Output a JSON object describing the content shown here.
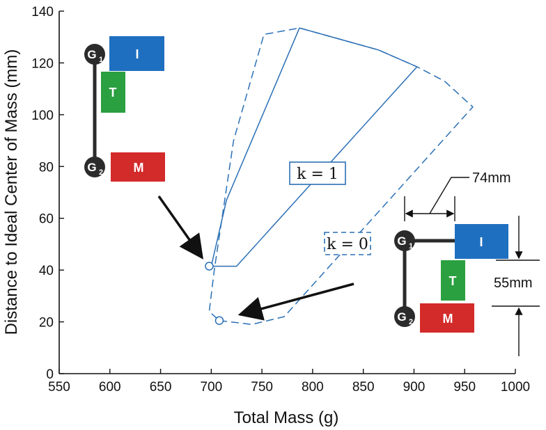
{
  "chart_data": {
    "type": "line",
    "xlabel": "Total Mass (g)",
    "ylabel": "Distance to Ideal Center of Mass (mm)",
    "xlim": [
      550,
      1000
    ],
    "ylim": [
      0,
      140
    ],
    "x_ticks": [
      "550",
      "600",
      "650",
      "700",
      "750",
      "800",
      "850",
      "900",
      "950",
      "1000"
    ],
    "y_ticks": [
      "0",
      "20",
      "40",
      "60",
      "80",
      "100",
      "120",
      "140"
    ],
    "grid": false,
    "series": [
      {
        "label": "k = 1",
        "style": "solid",
        "color": "#2a6fb5",
        "points": [
          [
            700,
            41.5
          ],
          [
            725,
            41.5
          ],
          [
            903,
            118.5
          ],
          [
            865,
            125
          ],
          [
            787,
            133.5
          ],
          [
            715,
            67
          ],
          [
            700,
            41.5
          ]
        ]
      },
      {
        "label": "k = 0",
        "style": "dashed",
        "color": "#2a6fb5",
        "points": [
          [
            708,
            20.5
          ],
          [
            740,
            19
          ],
          [
            772,
            22
          ],
          [
            958,
            103
          ],
          [
            930,
            113
          ],
          [
            903,
            118.5
          ],
          [
            865,
            125
          ],
          [
            787,
            133.5
          ],
          [
            752,
            131
          ],
          [
            722,
            90
          ],
          [
            703,
            40
          ],
          [
            698,
            24
          ],
          [
            708,
            20.5
          ]
        ]
      }
    ],
    "markers": [
      {
        "label": "k = 1",
        "x": 698,
        "y": 41.5
      },
      {
        "label": "k = 0",
        "x": 708,
        "y": 20.5
      }
    ],
    "annotations": {
      "k1_label": "k = 1",
      "k0_label": "k = 0",
      "dim_width": "74mm",
      "dim_height": "55mm"
    },
    "diagram_left": {
      "g1": "G",
      "g1_sub": "1",
      "g2": "G",
      "g2_sub": "2",
      "top": "I",
      "mid": "T",
      "bot": "M"
    },
    "diagram_right": {
      "g1": "G",
      "g1_sub": "1",
      "g2": "G",
      "g2_sub": "2",
      "top": "I",
      "mid": "T",
      "bot": "M"
    },
    "colors": {
      "line": "#2a6fb5",
      "block_I": "#1f6fc0",
      "block_T": "#2aa040",
      "block_M": "#d32a2a",
      "joint": "#2b2b2b"
    }
  }
}
